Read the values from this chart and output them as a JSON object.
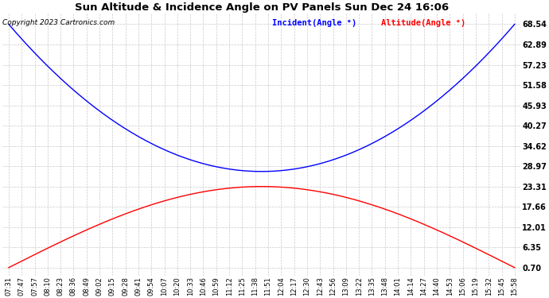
{
  "title": "Sun Altitude & Incidence Angle on PV Panels Sun Dec 24 16:06",
  "copyright": "Copyright 2023 Cartronics.com",
  "legend_incident": "Incident(Angle °)",
  "legend_altitude": "Altitude(Angle °)",
  "x_labels": [
    "07:31",
    "07:47",
    "07:57",
    "08:10",
    "08:23",
    "08:36",
    "08:49",
    "09:02",
    "09:15",
    "09:28",
    "09:41",
    "09:54",
    "10:07",
    "10:20",
    "10:33",
    "10:46",
    "10:59",
    "11:12",
    "11:25",
    "11:38",
    "11:51",
    "12:04",
    "12:17",
    "12:30",
    "12:43",
    "12:56",
    "13:09",
    "13:22",
    "13:35",
    "13:48",
    "14:01",
    "14:14",
    "14:27",
    "14:40",
    "14:53",
    "15:06",
    "15:19",
    "15:32",
    "15:45",
    "15:58"
  ],
  "yticks": [
    0.7,
    6.35,
    12.01,
    17.66,
    23.31,
    28.97,
    34.62,
    40.27,
    45.93,
    51.58,
    57.23,
    62.89,
    68.54
  ],
  "ymin": 0.7,
  "ymax": 68.54,
  "incident_min": 27.5,
  "altitude_max": 23.31,
  "incident_color": "#0000ff",
  "altitude_color": "#ff0000",
  "bg_color": "#ffffff",
  "grid_color": "#bbbbbb",
  "title_color": "#000000",
  "copyright_color": "#000000",
  "title_fontsize": 9.5,
  "copyright_fontsize": 6.5,
  "legend_fontsize": 7.5,
  "tick_fontsize": 6.0,
  "ytick_fontsize": 7.0
}
